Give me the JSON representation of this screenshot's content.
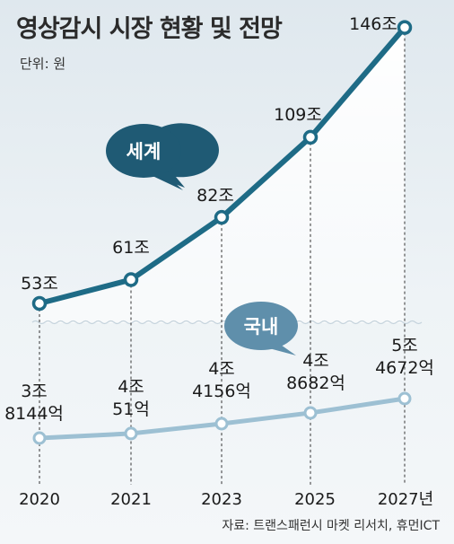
{
  "header": {
    "title": "영상감시 시장 현황 및 전망",
    "unit": "단위: 원"
  },
  "footer": {
    "source": "자료: 트랜스패런시 마켓 리서치, 휴먼ICT"
  },
  "colors": {
    "global_line": "#1e6b86",
    "domestic_line": "#9dc0d3",
    "global_bubble": "#1f5a74",
    "domestic_bubble": "#5f8fab",
    "background": "#e5ecf1"
  },
  "chart_data": {
    "type": "line",
    "title": "영상감시 시장 현황 및 전망",
    "x": [
      "2020",
      "2021",
      "2023",
      "2025",
      "2027년"
    ],
    "series": [
      {
        "name": "세계",
        "values": [
          53,
          61,
          82,
          109,
          146
        ],
        "labels": [
          "53조",
          "61조",
          "82조",
          "109조",
          "146조"
        ]
      },
      {
        "name": "국내",
        "values": [
          3.8144,
          4.0051,
          4.4156,
          4.8682,
          5.4672
        ],
        "labels": [
          [
            "3조",
            "8144억"
          ],
          [
            "4조",
            "51억"
          ],
          [
            "4조",
            "4156억"
          ],
          [
            "4조",
            "8682억"
          ],
          [
            "5조",
            "4672억"
          ]
        ]
      }
    ]
  }
}
